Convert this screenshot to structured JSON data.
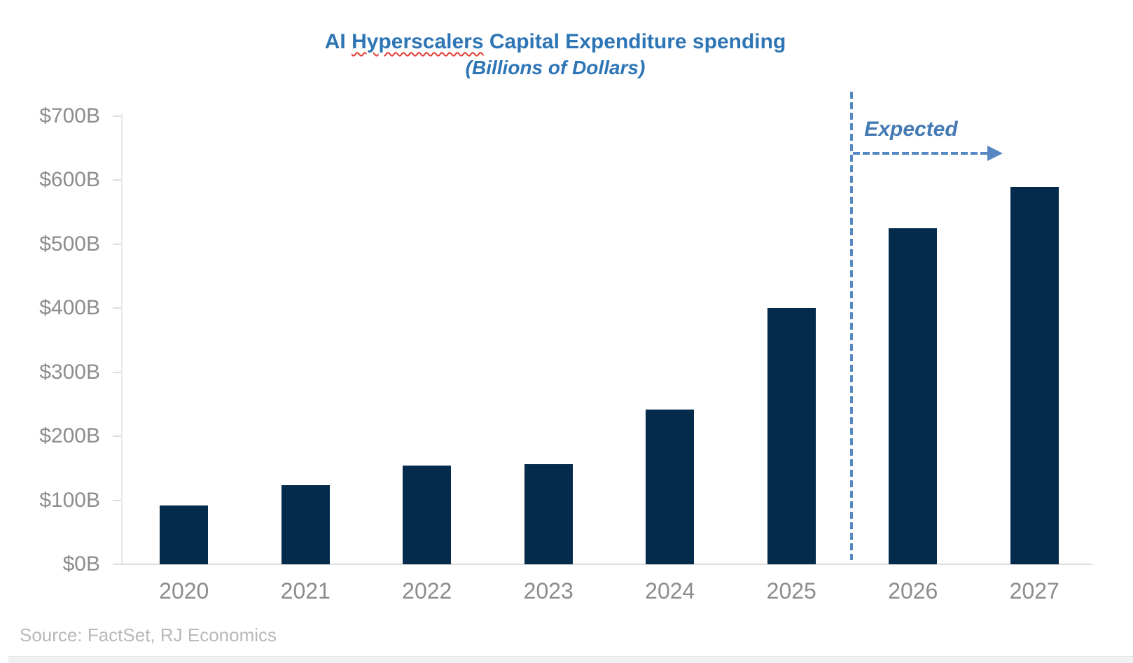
{
  "title": {
    "part1": "AI ",
    "misspelled_word": "Hyperscalers",
    "part2": " Capital Expenditure spending",
    "subtitle": "(Billions of Dollars)"
  },
  "annotation": {
    "expected_label": "Expected"
  },
  "footer": {
    "source": "Source: FactSet, RJ Economics"
  },
  "colors": {
    "bar_navy": "#052B4C",
    "title_blue": "#2E75B6",
    "annotation_blue": "#4479B2",
    "dashed_blue": "#5588C2",
    "axis_text_gray": "#8C8C8C",
    "source_gray": "#B8B8B8",
    "spellcheck_red": "#E03C31",
    "axis_line_gray": "#DEDEDE"
  },
  "chart_data": {
    "type": "bar",
    "title": "AI Hyperscalers Capital Expenditure spending",
    "subtitle": "(Billions of Dollars)",
    "categories": [
      "2020",
      "2021",
      "2022",
      "2023",
      "2024",
      "2025",
      "2026",
      "2027"
    ],
    "values": [
      92,
      124,
      154,
      156,
      242,
      400,
      525,
      590
    ],
    "unit": "billions of dollars",
    "ylim": [
      0,
      700
    ],
    "ytick_step": 100,
    "ytick_labels": [
      "$700B",
      "$600B",
      "$500B",
      "$400B",
      "$300B",
      "$200B",
      "$100B",
      "$0B"
    ],
    "gridlines": false,
    "legend": false,
    "annotation": {
      "label": "Expected",
      "applies_to": [
        "2026",
        "2027"
      ],
      "divider_between": [
        "2025",
        "2026"
      ]
    },
    "source": "Source: FactSet, RJ Economics"
  }
}
